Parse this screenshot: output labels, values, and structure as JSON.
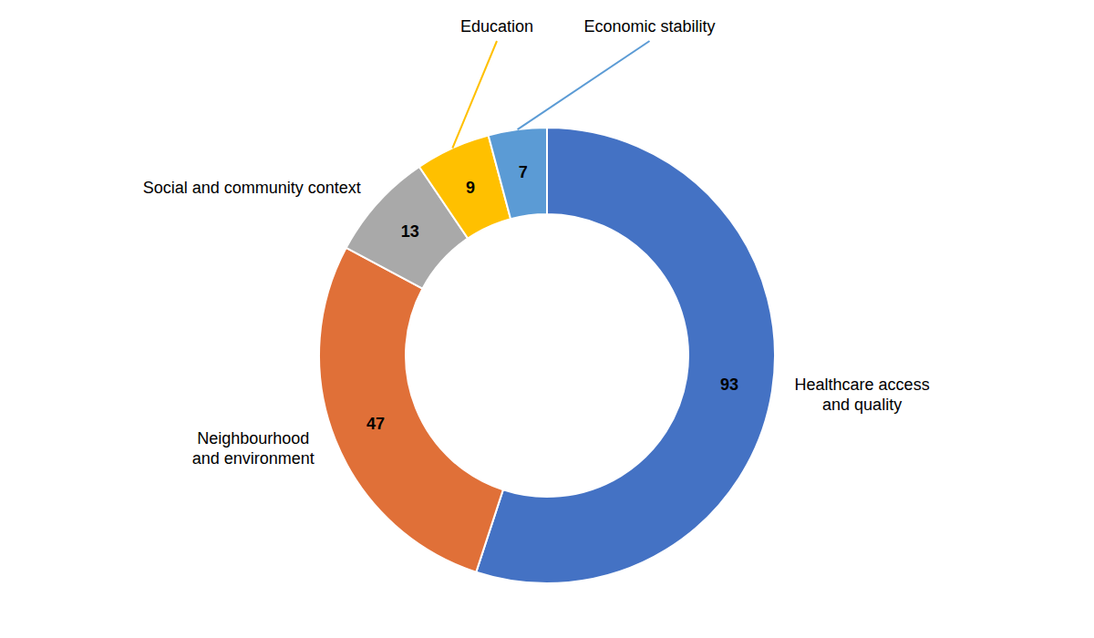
{
  "chart_data": {
    "type": "donut",
    "categories": [
      "Healthcare access\nand quality",
      "Neighbourhood\nand environment",
      "Social and community context",
      "Education",
      "Economic stability"
    ],
    "values": [
      93,
      47,
      13,
      9,
      7
    ],
    "colors": [
      "#4472C4",
      "#E07038",
      "#A9A9A9",
      "#FFC000",
      "#5B9BD5"
    ],
    "data_labels": true
  }
}
